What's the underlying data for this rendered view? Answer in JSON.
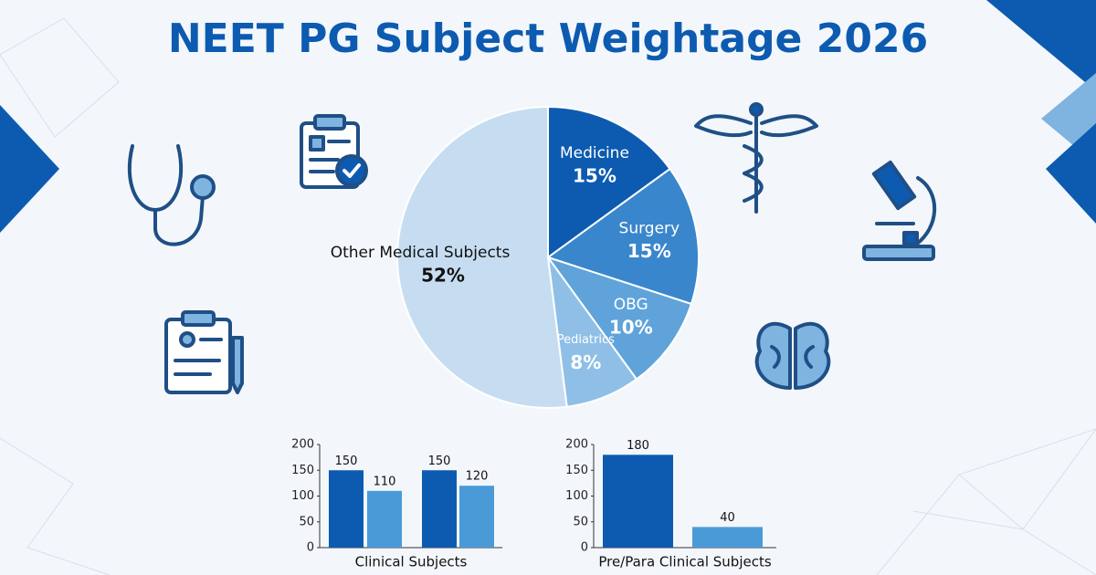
{
  "chart_data": [
    {
      "type": "pie",
      "title": "NEET PG Subject Weightage 2026",
      "categories": [
        "Medicine",
        "Surgery",
        "OBG",
        "Pediatrics",
        "Other Medical Subjects"
      ],
      "values": [
        15,
        15,
        10,
        8,
        52
      ],
      "value_labels": [
        "15%",
        "15%",
        "10%",
        "8%",
        "52%"
      ],
      "colors": [
        "#0d5bb0",
        "#3a86cc",
        "#5fa3da",
        "#8fbfe6",
        "#c6ddf1"
      ]
    },
    {
      "type": "bar",
      "xlabel": "Clinical Subjects",
      "categories": [
        null,
        null,
        null,
        null
      ],
      "values": [
        150,
        110,
        150,
        120
      ],
      "colors": [
        "#0d5bb0",
        "#4a9ad8",
        "#0d5bb0",
        "#4a9ad8"
      ],
      "ylim": [
        0,
        200
      ],
      "yticks": [
        0,
        50,
        100,
        150,
        200
      ]
    },
    {
      "type": "bar",
      "xlabel": "Pre/Para Clinical Subjects",
      "categories": [
        null,
        null
      ],
      "values": [
        180,
        40
      ],
      "colors": [
        "#0d5bb0",
        "#4a9ad8"
      ],
      "ylim": [
        0,
        200
      ],
      "yticks": [
        0,
        50,
        100,
        150,
        200
      ]
    }
  ]
}
